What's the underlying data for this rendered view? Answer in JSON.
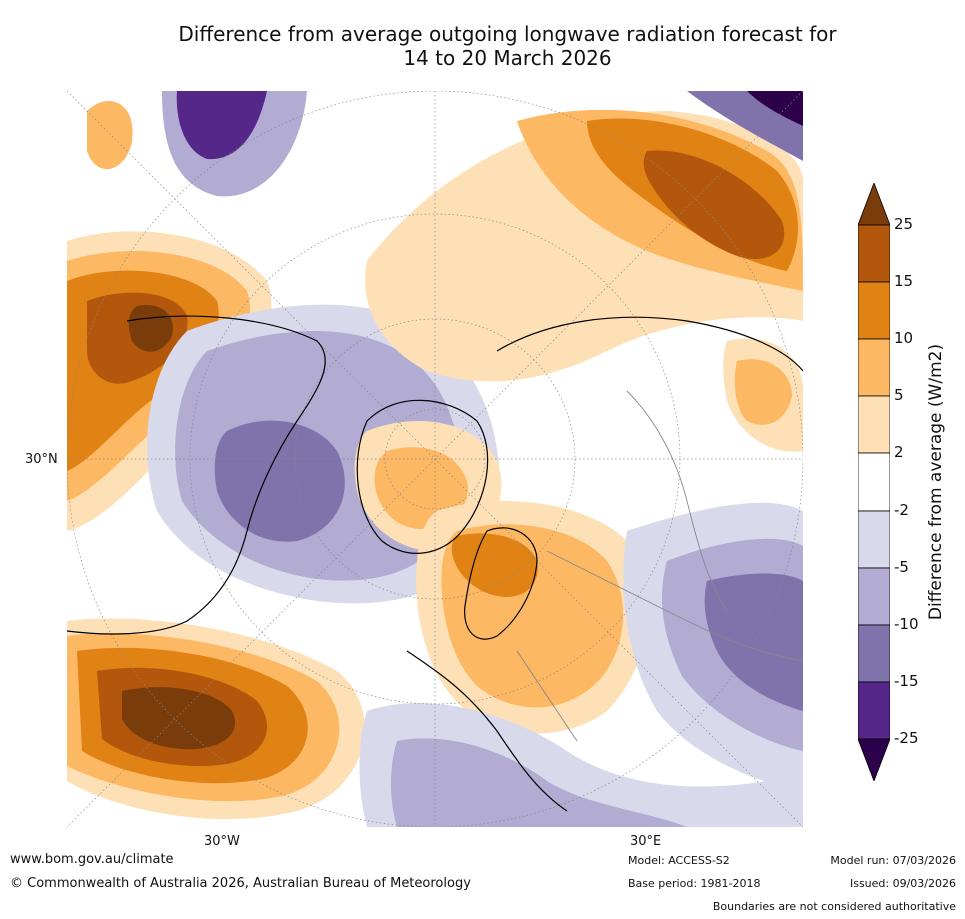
{
  "title_line1": "Difference from average outgoing longwave radiation forecast for",
  "title_line2": "14 to 20 March 2026",
  "map": {
    "lat_label": "30°N",
    "lon_west_label": "30°W",
    "lon_east_label": "30°E",
    "palette": {
      "p25": "#7a3c0b",
      "p15": "#b2570c",
      "p10": "#e08214",
      "p5": "#fdb863",
      "p2": "#fee0b6",
      "zero": "#ffffff",
      "n2": "#d8daeb",
      "n5": "#b2abd2",
      "n10": "#8073ac",
      "n15": "#542788",
      "n25": "#2d004b"
    }
  },
  "colorbar": {
    "ticks": [
      "25",
      "15",
      "10",
      "5",
      "2",
      "-2",
      "-5",
      "-10",
      "-15",
      "-25"
    ],
    "label": "Difference from average (W/m2)"
  },
  "footer": {
    "website": "www.bom.gov.au/climate",
    "copyright": "© Commonwealth of Australia 2026, Australian Bureau of Meteorology",
    "model": "Model: ACCESS-S2",
    "base_period": "Base period: 1981-2018",
    "model_run": "Model run: 07/03/2026",
    "issued": "Issued: 09/03/2026",
    "disclaimer": "Boundaries are not considered authoritative"
  }
}
